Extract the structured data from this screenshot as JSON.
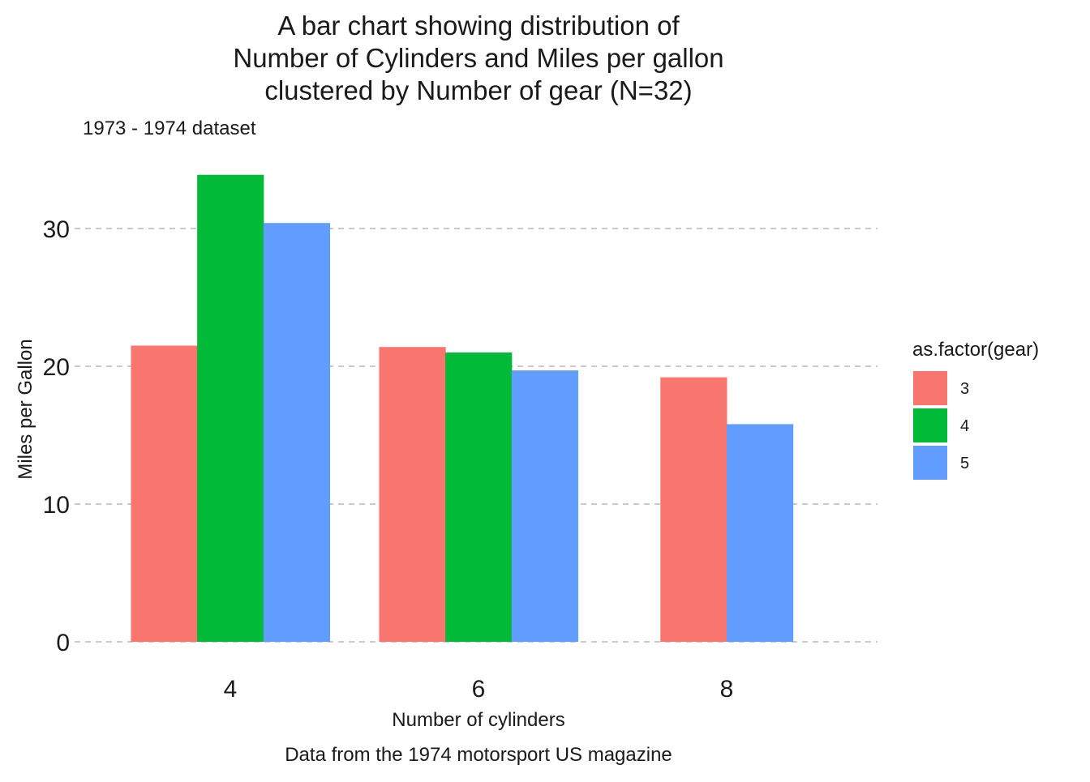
{
  "chart_data": {
    "type": "bar",
    "title_lines": [
      "A bar chart showing distribution of",
      "Number of Cylinders and Miles per gallon",
      "clustered by Number of gear (N=32)"
    ],
    "subtitle": "1973 - 1974 dataset",
    "xlabel": "Number of cylinders",
    "ylabel": "Miles per Gallon",
    "caption": "Data from the 1974 motorsport US magazine",
    "categories": [
      "4",
      "6",
      "8"
    ],
    "yticks": [
      "0",
      "10",
      "20",
      "30"
    ],
    "ylim": [
      0,
      35
    ],
    "grid": "horizontal dashed",
    "legend": {
      "title": "as.factor(gear)",
      "position": "right"
    },
    "series": [
      {
        "name": "3",
        "color": "#F8766D",
        "values": [
          21.5,
          21.4,
          19.2
        ]
      },
      {
        "name": "4",
        "color": "#00BA38",
        "values": [
          33.9,
          21.0,
          null
        ]
      },
      {
        "name": "5",
        "color": "#619CFF",
        "values": [
          30.4,
          19.7,
          15.8
        ]
      }
    ]
  }
}
